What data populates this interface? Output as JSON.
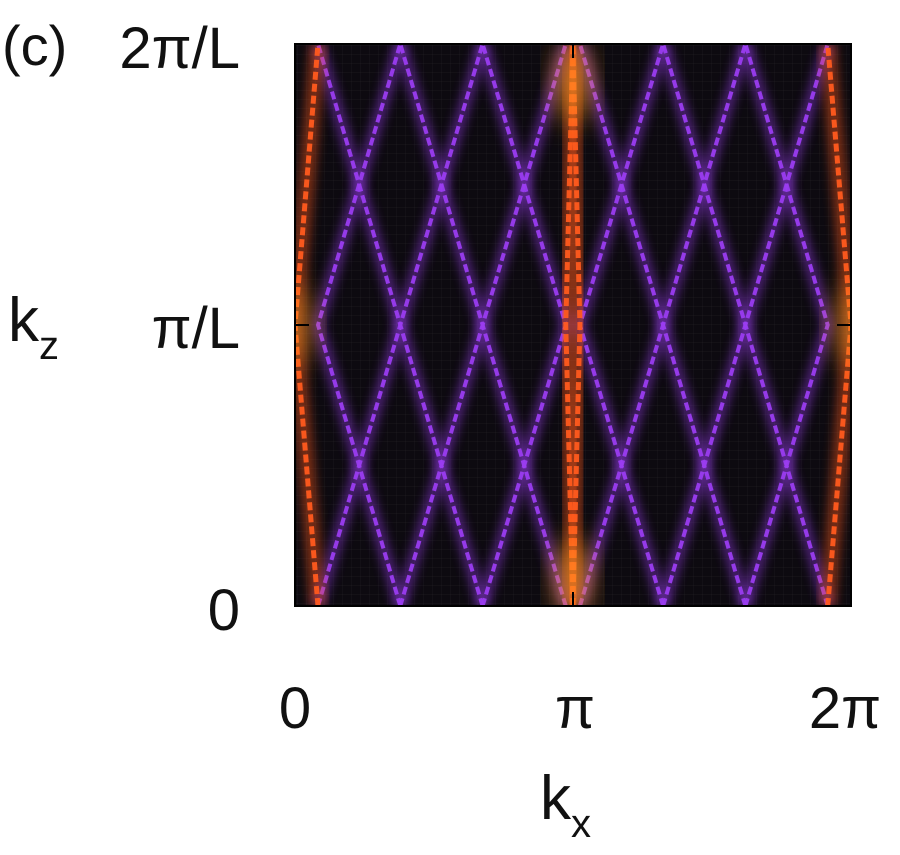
{
  "panel_label": "(c)",
  "colors": {
    "background": "#0d0a10",
    "line": "#9a3cf0",
    "line_hot": "#ff5a1e",
    "peak": "#ff9a20"
  },
  "chart_data": {
    "type": "heatmap",
    "xlabel": {
      "main": "k",
      "sub": "x"
    },
    "ylabel": {
      "main": "k",
      "sub": "z"
    },
    "xlim": [
      0,
      6.2832
    ],
    "ylim": [
      0,
      1
    ],
    "y_unit": "2π/L",
    "x_ticks": [
      {
        "value": 0,
        "label": "0"
      },
      {
        "value": 3.1416,
        "label": "π"
      },
      {
        "value": 6.2832,
        "label": "2π"
      }
    ],
    "y_ticks": [
      {
        "value": 0,
        "label": "0"
      },
      {
        "value": 0.5,
        "label": "π/L"
      },
      {
        "value": 1,
        "label": "2π/L"
      }
    ],
    "grid": false,
    "legend": "none",
    "series": [
      {
        "vertices": [
          [
            0.26,
            0
          ],
          [
            1.19,
            0.5
          ],
          [
            0.26,
            1
          ]
        ],
        "intensity": 0.5
      },
      {
        "vertices": [
          [
            1.19,
            0
          ],
          [
            0.26,
            0.5
          ],
          [
            1.19,
            1
          ]
        ],
        "intensity": 0.5
      },
      {
        "vertices": [
          [
            1.19,
            0
          ],
          [
            2.12,
            0.5
          ],
          [
            1.19,
            1
          ]
        ],
        "intensity": 0.5
      },
      {
        "vertices": [
          [
            2.12,
            0
          ],
          [
            1.19,
            0.5
          ],
          [
            2.12,
            1
          ]
        ],
        "intensity": 0.5
      },
      {
        "vertices": [
          [
            2.12,
            0
          ],
          [
            3.06,
            0.5
          ],
          [
            2.12,
            1
          ]
        ],
        "intensity": 0.5
      },
      {
        "vertices": [
          [
            3.06,
            0
          ],
          [
            2.12,
            0.5
          ],
          [
            3.06,
            1
          ]
        ],
        "intensity": 0.5
      },
      {
        "vertices": [
          [
            3.22,
            0
          ],
          [
            4.16,
            0.5
          ],
          [
            3.22,
            1
          ]
        ],
        "intensity": 0.5
      },
      {
        "vertices": [
          [
            4.16,
            0
          ],
          [
            3.22,
            0.5
          ],
          [
            4.16,
            1
          ]
        ],
        "intensity": 0.5
      },
      {
        "vertices": [
          [
            4.16,
            0
          ],
          [
            5.09,
            0.5
          ],
          [
            4.16,
            1
          ]
        ],
        "intensity": 0.5
      },
      {
        "vertices": [
          [
            5.09,
            0
          ],
          [
            4.16,
            0.5
          ],
          [
            5.09,
            1
          ]
        ],
        "intensity": 0.5
      },
      {
        "vertices": [
          [
            5.09,
            0
          ],
          [
            6.02,
            0.5
          ],
          [
            5.09,
            1
          ]
        ],
        "intensity": 0.5
      },
      {
        "vertices": [
          [
            6.02,
            0
          ],
          [
            5.09,
            0.5
          ],
          [
            6.02,
            1
          ]
        ],
        "intensity": 0.5
      },
      {
        "vertices": [
          [
            0.26,
            0
          ],
          [
            0.0,
            0.5
          ],
          [
            0.26,
            1
          ]
        ],
        "intensity": 0.9
      },
      {
        "vertices": [
          [
            6.02,
            0
          ],
          [
            6.2832,
            0.5
          ],
          [
            6.02,
            1
          ]
        ],
        "intensity": 0.9
      },
      {
        "vertices": [
          [
            3.14,
            0
          ],
          [
            3.06,
            0.5
          ],
          [
            3.14,
            1
          ]
        ],
        "intensity": 0.9
      },
      {
        "vertices": [
          [
            3.14,
            0
          ],
          [
            3.22,
            0.5
          ],
          [
            3.14,
            1
          ]
        ],
        "intensity": 0.9
      }
    ],
    "hotspots": [
      {
        "x": 3.14,
        "y": 0.93,
        "intensity": 1.0
      },
      {
        "x": 3.14,
        "y": 0.05,
        "intensity": 1.0
      },
      {
        "x": 0.0,
        "y": 0.5,
        "intensity": 0.8
      },
      {
        "x": 6.2832,
        "y": 0.5,
        "intensity": 0.8
      }
    ]
  }
}
